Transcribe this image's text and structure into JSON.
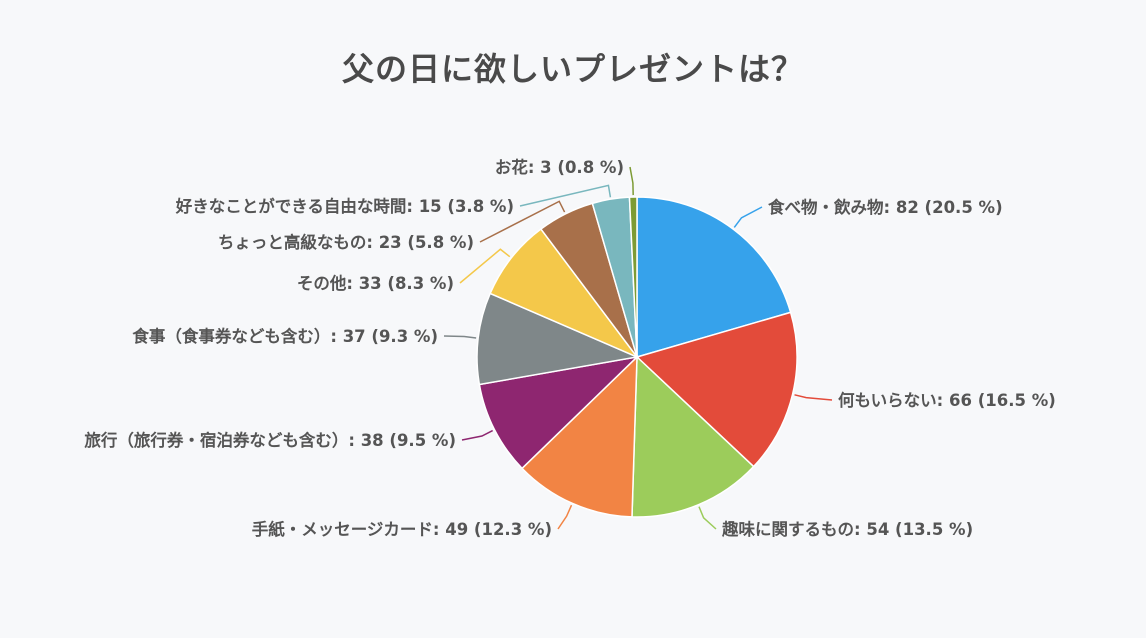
{
  "chart_data": {
    "type": "pie",
    "title": "父の日に欲しいプレゼントは？",
    "slices": [
      {
        "name": "食べ物・飲み物",
        "value": 82,
        "label": "食べ物・飲み物: 82 (20.5 %)",
        "color": "#36a2eb"
      },
      {
        "name": "何もいらない",
        "value": 66,
        "label": "何もいらない: 66 (16.5 %)",
        "color": "#e34b3a"
      },
      {
        "name": "趣味に関するもの",
        "value": 54,
        "label": "趣味に関するもの: 54 (13.5 %)",
        "color": "#9ccc5b"
      },
      {
        "name": "手紙・メッセージカード",
        "value": 49,
        "label": "手紙・メッセージカード: 49 (12.3 %)",
        "color": "#f28444"
      },
      {
        "name": "旅行（旅行券・宿泊券なども含む）",
        "value": 38,
        "label": "旅行（旅行券・宿泊券なども含む）: 38 (9.5 %)",
        "color": "#8e2670"
      },
      {
        "name": "食事（食事券なども含む）",
        "value": 37,
        "label": "食事（食事券なども含む）: 37 (9.3 %)",
        "color": "#7f8789"
      },
      {
        "name": "その他",
        "value": 33,
        "label": "その他: 33 (8.3 %)",
        "color": "#f4c84a"
      },
      {
        "name": "ちょっと高級なもの",
        "value": 23,
        "label": "ちょっと高級なもの: 23 (5.8 %)",
        "color": "#a8704a"
      },
      {
        "name": "好きなことができる自由な時間",
        "value": 15,
        "label": "好きなことができる自由な時間: 15 (3.8 %)",
        "color": "#79b7be"
      },
      {
        "name": "お花",
        "value": 3,
        "label": "お花: 3 (0.8 %)",
        "color": "#7d9b34"
      }
    ]
  }
}
